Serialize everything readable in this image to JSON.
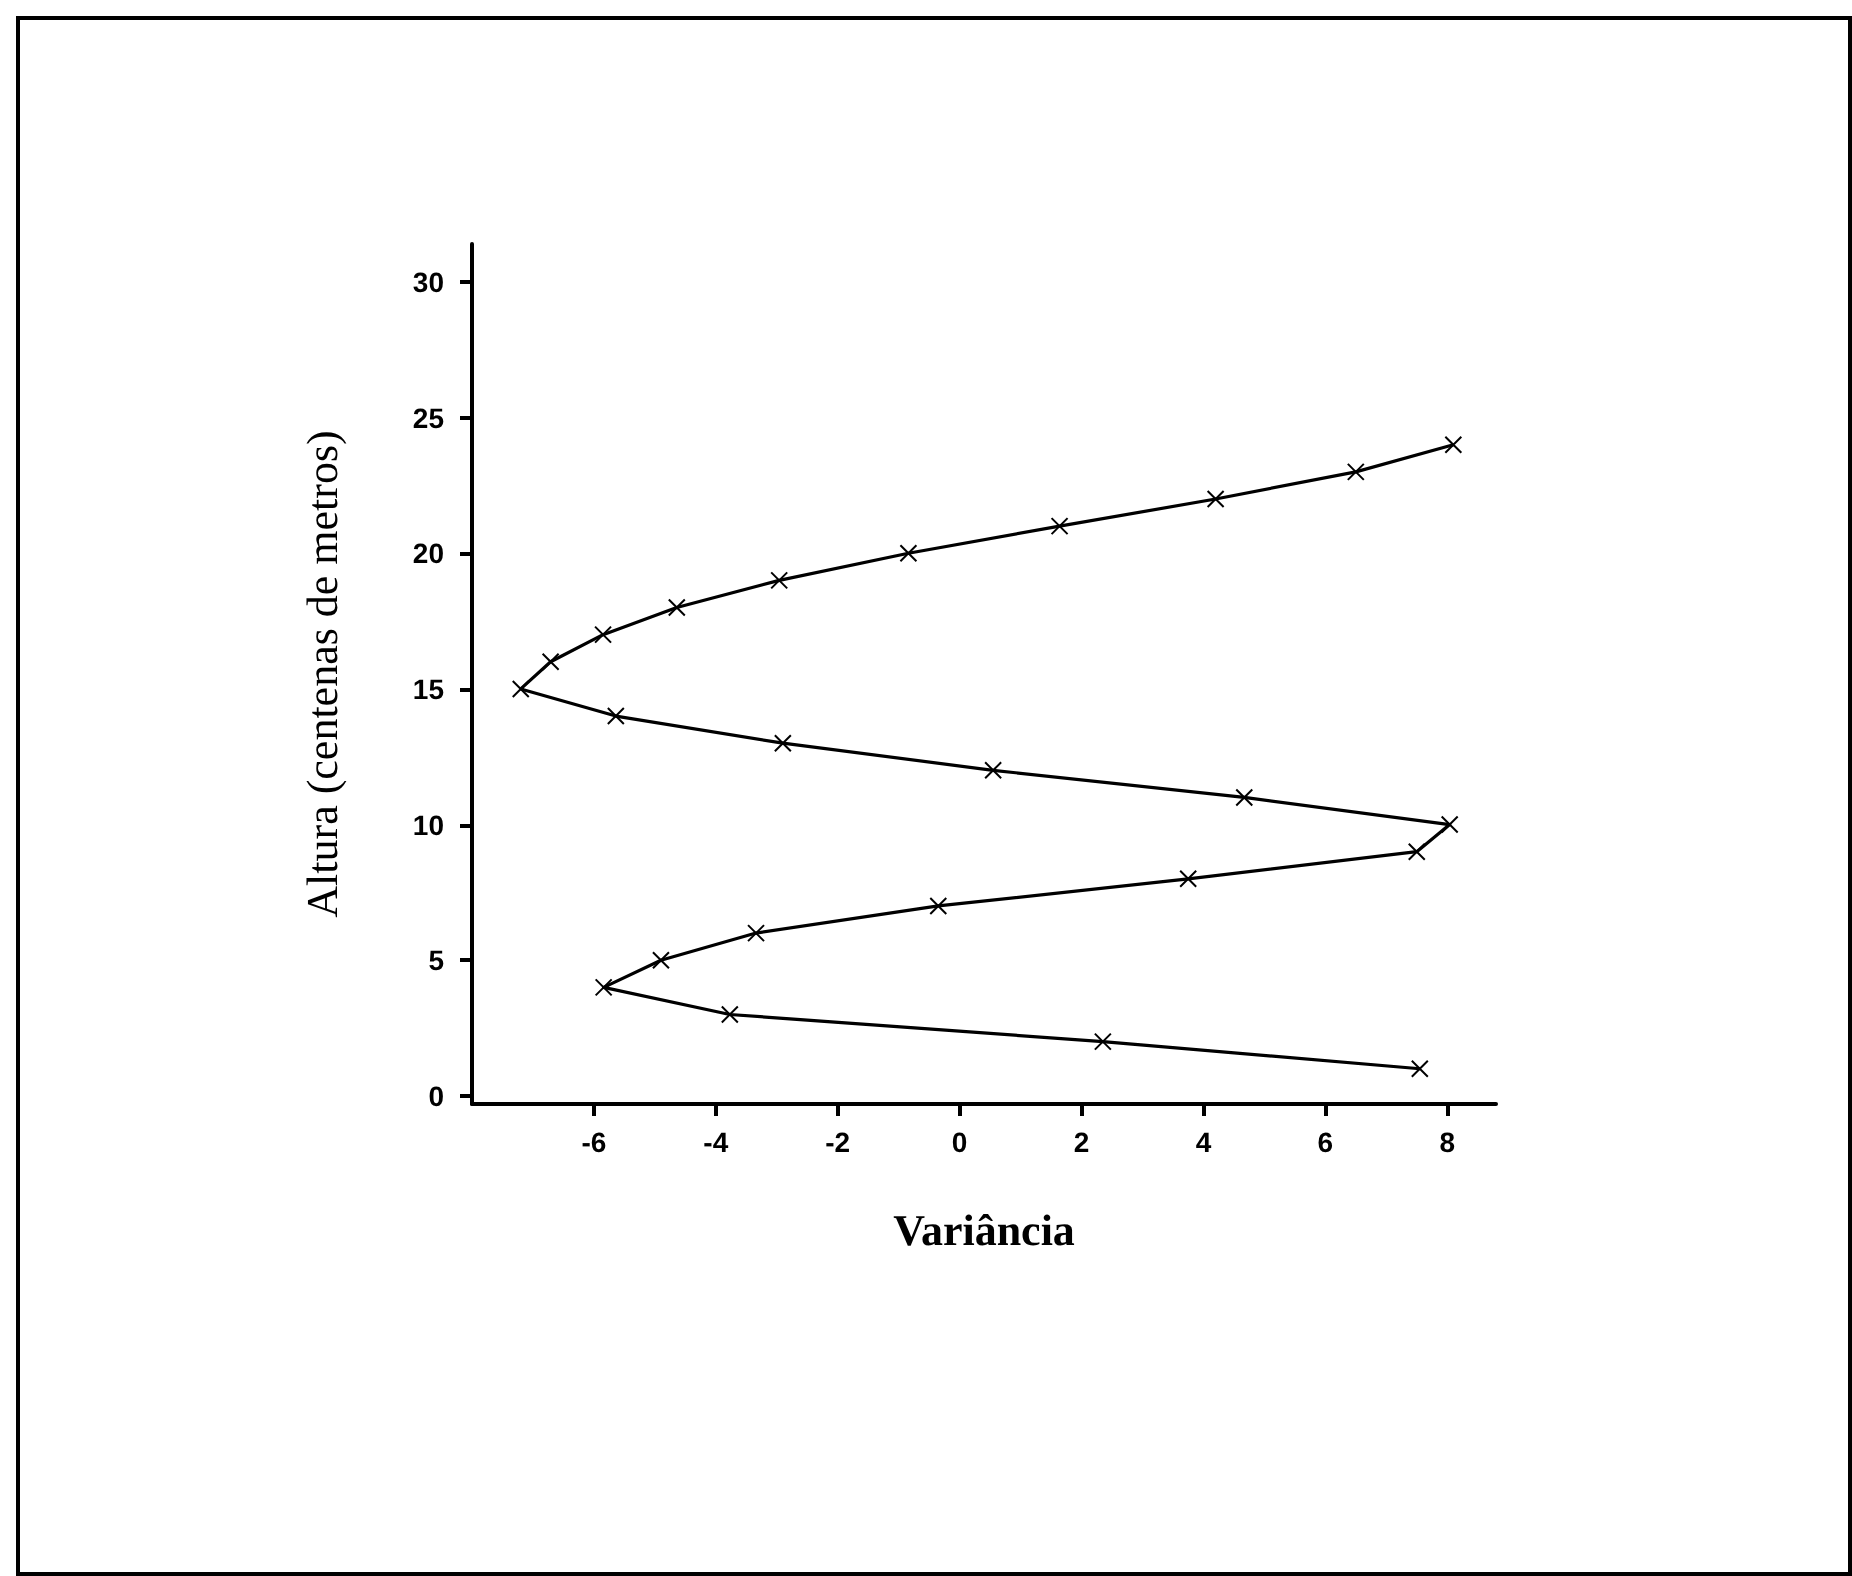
{
  "chart_data": {
    "type": "line",
    "xlabel": "Variância",
    "ylabel": "Altura (centenas de metros)",
    "x": [
      7.55,
      2.35,
      -3.77,
      -5.84,
      -4.9,
      -3.34,
      -0.35,
      3.75,
      7.5,
      8.04,
      4.67,
      0.55,
      -2.9,
      -5.64,
      -7.2,
      -6.71,
      -5.85,
      -4.64,
      -2.96,
      -0.84,
      1.64,
      4.2,
      6.5,
      8.1
    ],
    "values": [
      1,
      2,
      3,
      4,
      5,
      6,
      7,
      8,
      9,
      10,
      11,
      12,
      13,
      14,
      15,
      16,
      17,
      18,
      19,
      20,
      21,
      22,
      23,
      24
    ],
    "color": "#000000",
    "marker": "cross",
    "line_style": "solid",
    "grid": false,
    "xlim": [
      -8,
      8.8
    ],
    "xticks": [
      -6,
      -4,
      -2,
      0,
      2,
      4,
      6,
      8
    ],
    "ylim": [
      -0.3,
      31.4
    ],
    "yticks": [
      0,
      5,
      10,
      15,
      20,
      25,
      30
    ]
  }
}
